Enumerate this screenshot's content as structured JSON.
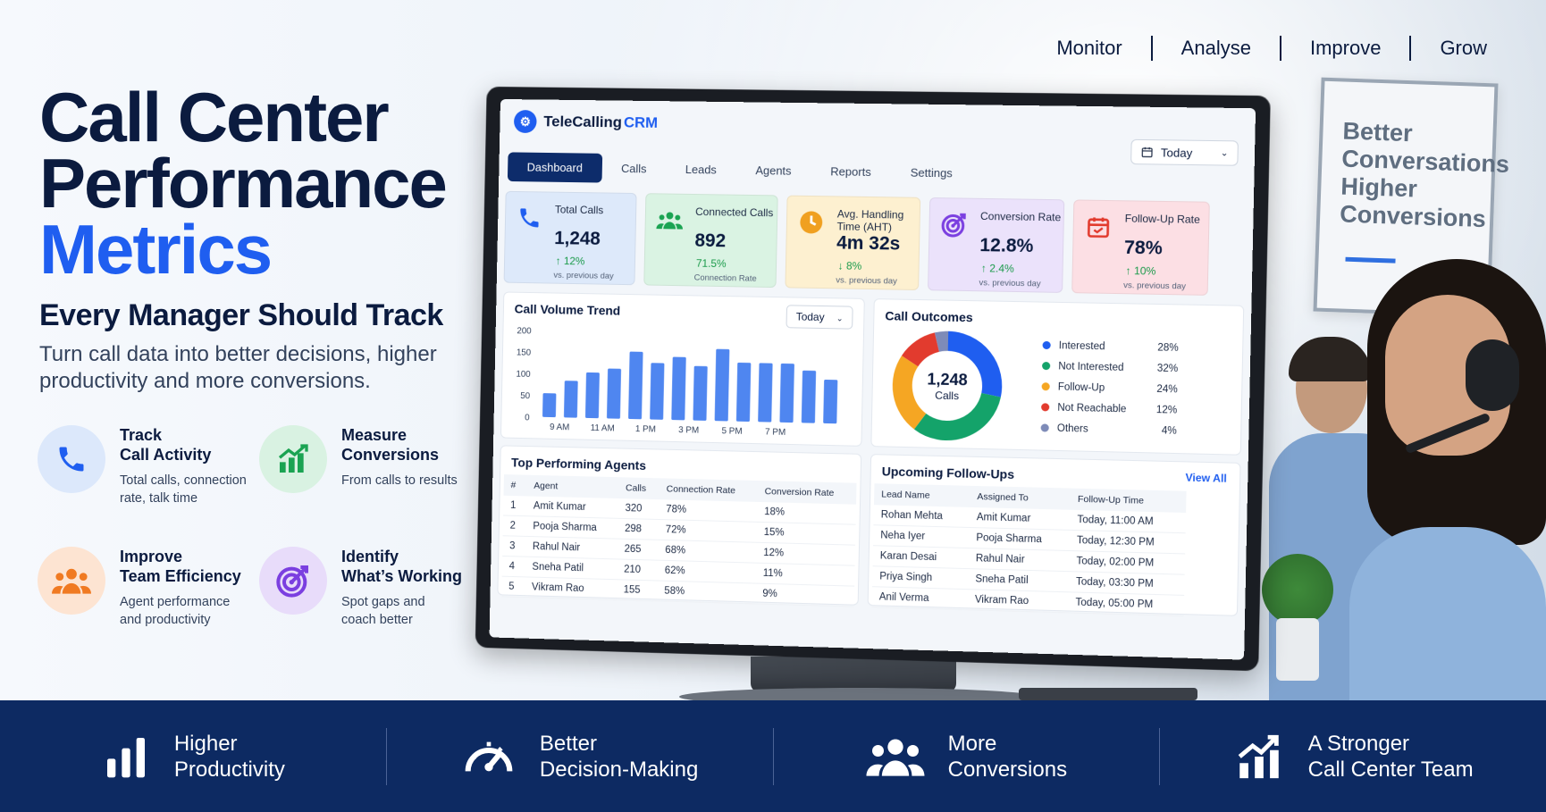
{
  "nav": [
    "Monitor",
    "Analyse",
    "Improve",
    "Grow"
  ],
  "hero": {
    "line1": "Call Center",
    "line2": "Performance",
    "line3": "Metrics",
    "subtitle": "Every Manager Should Track",
    "lead": "Turn call data into better decisions, higher productivity and more conversions."
  },
  "features": [
    {
      "title": "Track\nCall Activity",
      "desc": "Total calls, connection\nrate, talk time",
      "icon": "phone-icon",
      "color": "#1f5ef0",
      "bg": "#dce8fb"
    },
    {
      "title": "Measure\nConversions",
      "desc": "From calls to results",
      "icon": "growth-chart-icon",
      "color": "#1aa352",
      "bg": "#d9f2e2"
    },
    {
      "title": "Improve\nTeam Efficiency",
      "desc": "Agent performance\nand productivity",
      "icon": "team-icon",
      "color": "#f07a22",
      "bg": "#fde4d2"
    },
    {
      "title": "Identify\nWhat’s Working",
      "desc": "Spot gaps and\ncoach better",
      "icon": "target-icon",
      "color": "#7b3fe0",
      "bg": "#e8dcfa"
    }
  ],
  "poster": {
    "text": "Better Conversations Higher Conversions"
  },
  "app": {
    "brand": "TeleCalling",
    "brand_accent": "CRM",
    "date_filter": "Today",
    "tabs": [
      "Dashboard",
      "Calls",
      "Leads",
      "Agents",
      "Reports",
      "Settings"
    ],
    "kpis": [
      {
        "label": "Total Calls",
        "value": "1,248",
        "change": "↑ 12%",
        "sub": "vs. previous day",
        "color": "#1f5ef0",
        "bg": "#dde9fa",
        "change_color": "#1a9a4a",
        "icon": "phone-icon"
      },
      {
        "label": "Connected Calls",
        "value": "892",
        "change": "71.5%",
        "sub": "Connection Rate",
        "color": "#1aa352",
        "bg": "#daf3e3",
        "change_color": "#1a9a4a",
        "icon": "team-icon"
      },
      {
        "label": "Avg. Handling Time (AHT)",
        "value": "4m 32s",
        "change": "↓ 8%",
        "sub": "vs. previous day",
        "color": "#f0a020",
        "bg": "#fdf0d0",
        "change_color": "#1a9a4a",
        "icon": "clock-icon"
      },
      {
        "label": "Conversion Rate",
        "value": "12.8%",
        "change": "↑ 2.4%",
        "sub": "vs. previous day",
        "color": "#7b3fe0",
        "bg": "#ebe2fb",
        "change_color": "#1a9a4a",
        "icon": "target-icon"
      },
      {
        "label": "Follow-Up Rate",
        "value": "78%",
        "change": "↑ 10%",
        "sub": "vs. previous day",
        "color": "#e23b2e",
        "bg": "#fcdfe4",
        "change_color": "#1a9a4a",
        "icon": "calendar-icon"
      }
    ],
    "trend": {
      "title": "Call Volume Trend",
      "filter": "Today"
    },
    "outcomes": {
      "title": "Call Outcomes",
      "center_value": "1,248",
      "center_label": "Calls",
      "items": [
        {
          "label": "Interested",
          "pct": "28%",
          "color": "#1f5ef0"
        },
        {
          "label": "Not Interested",
          "pct": "32%",
          "color": "#14a36a"
        },
        {
          "label": "Follow-Up",
          "pct": "24%",
          "color": "#f5a623"
        },
        {
          "label": "Not Reachable",
          "pct": "12%",
          "color": "#e23b2e"
        },
        {
          "label": "Others",
          "pct": "4%",
          "color": "#7e8bb8"
        }
      ]
    },
    "agents": {
      "title": "Top Performing Agents",
      "headers": [
        "#",
        "Agent",
        "Calls",
        "Connection Rate",
        "Conversion Rate"
      ],
      "rows": [
        [
          "1",
          "Amit Kumar",
          "320",
          "78%",
          "18%"
        ],
        [
          "2",
          "Pooja Sharma",
          "298",
          "72%",
          "15%"
        ],
        [
          "3",
          "Rahul Nair",
          "265",
          "68%",
          "12%"
        ],
        [
          "4",
          "Sneha Patil",
          "210",
          "62%",
          "11%"
        ],
        [
          "5",
          "Vikram Rao",
          "155",
          "58%",
          "9%"
        ]
      ]
    },
    "followups": {
      "title": "Upcoming Follow-Ups",
      "view_all": "View All",
      "headers": [
        "Lead Name",
        "Assigned To",
        "Follow-Up Time"
      ],
      "rows": [
        [
          "Rohan Mehta",
          "Amit Kumar",
          "Today, 11:00 AM"
        ],
        [
          "Neha Iyer",
          "Pooja Sharma",
          "Today, 12:30 PM"
        ],
        [
          "Karan Desai",
          "Rahul Nair",
          "Today, 02:00 PM"
        ],
        [
          "Priya Singh",
          "Sneha Patil",
          "Today, 03:30 PM"
        ],
        [
          "Anil Verma",
          "Vikram Rao",
          "Today, 05:00 PM"
        ]
      ]
    }
  },
  "chart_data": {
    "type": "bar",
    "title": "Call Volume Trend",
    "x_tick_labels": [
      "9 AM",
      "11 AM",
      "1 PM",
      "3 PM",
      "5 PM",
      "7 PM"
    ],
    "values": [
      55,
      85,
      105,
      115,
      155,
      130,
      145,
      125,
      165,
      135,
      135,
      135,
      120,
      100
    ],
    "ylim": [
      0,
      200
    ],
    "y_ticks": [
      0,
      50,
      100,
      150,
      200
    ],
    "color": "#4f86f0",
    "grid": false,
    "xlabel": "",
    "ylabel": ""
  },
  "footer": [
    {
      "label": "Higher\nProductivity",
      "icon": "bar-chart-icon"
    },
    {
      "label": "Better\nDecision-Making",
      "icon": "gauge-icon"
    },
    {
      "label": "More\nConversions",
      "icon": "team-icon"
    },
    {
      "label": "A Stronger\nCall Center Team",
      "icon": "growth-chart-icon"
    }
  ]
}
